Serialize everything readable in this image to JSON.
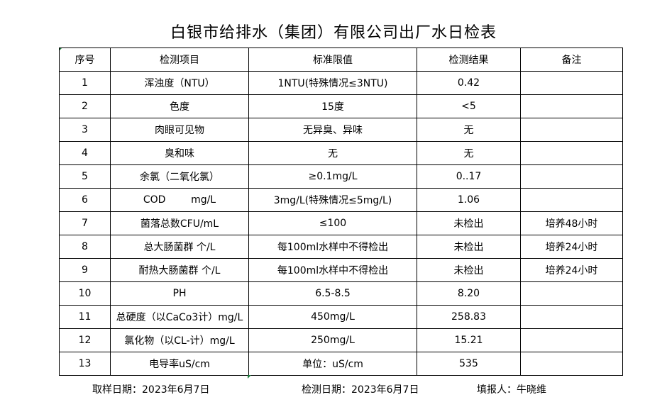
{
  "title": "白银市给排水（集团）有限公司出厂水日检表",
  "headers": [
    "序号",
    "检测项目",
    "标准限值",
    "检测结果",
    "备注"
  ],
  "rows": [
    [
      "1",
      "浑浊度（NTU）",
      "1NTU(特殊情况≤3NTU)",
      "0.42",
      ""
    ],
    [
      "2",
      "色度",
      "15度",
      "<5",
      ""
    ],
    [
      "3",
      "肉眼可见物",
      "无异臭、异味",
      "无",
      ""
    ],
    [
      "4",
      "臭和味",
      "无",
      "无",
      ""
    ],
    [
      "5",
      "余氯（二氧化氯）",
      "≥0.1mg/L",
      "0..17",
      ""
    ],
    [
      "6",
      "COD        mg/L",
      "3mg/L(特殊情况≤5mg/L)",
      "1.06",
      ""
    ],
    [
      "7",
      "菌落总数CFU/mL",
      "≤100",
      "未检出",
      "培养48小时"
    ],
    [
      "8",
      "总大肠菌群 个/L",
      "每100ml水样中不得检出",
      "未检出",
      "培养24小时"
    ],
    [
      "9",
      "耐热大肠菌群 个/L",
      "每100ml水样中不得检出",
      "未检出",
      "培养24小时"
    ],
    [
      "10",
      "PH",
      "6.5-8.5",
      "8.20",
      ""
    ],
    [
      "11",
      "总硬度（以CaCo3计）mg/L",
      "450mg/L",
      "258.83",
      ""
    ],
    [
      "12",
      "氯化物（以CL-计）mg/L",
      "250mg/L",
      "15.21",
      ""
    ],
    [
      "13",
      "电导率uS/cm",
      "单位：uS/cm",
      "535",
      ""
    ]
  ],
  "footer": {
    "sampling_date": "取样日期：2023年6月7日",
    "test_date": "检测日期：2023年6月7日",
    "reporter": "填报人：牛晓维"
  }
}
